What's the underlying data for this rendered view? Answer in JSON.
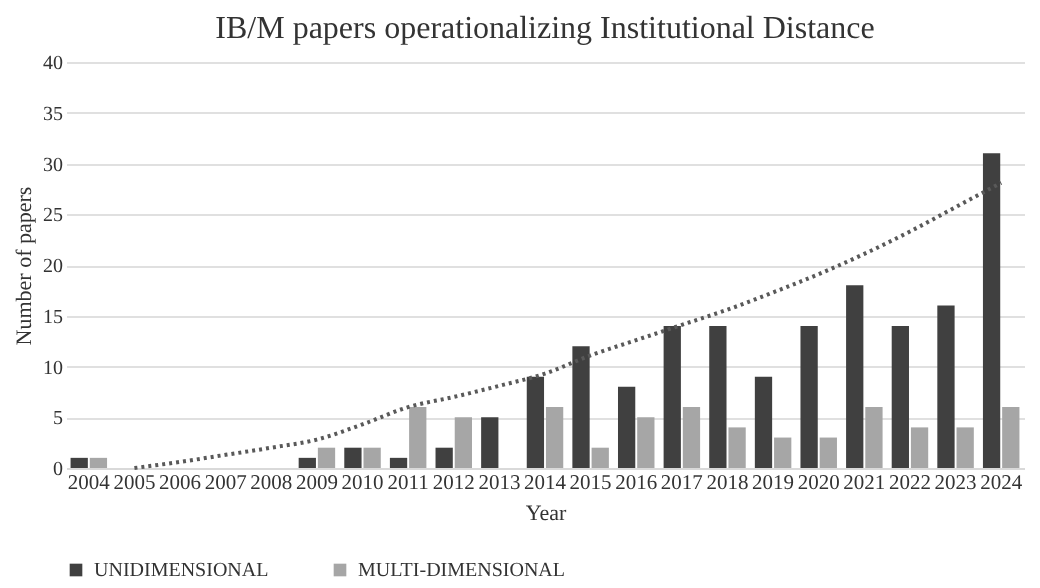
{
  "chart_data": {
    "type": "bar",
    "title": "IB/M papers operationalizing Institutional Distance",
    "xlabel": "Year",
    "ylabel": "Number of papers",
    "categories": [
      "2004",
      "2005",
      "2006",
      "2007",
      "2008",
      "2009",
      "2010",
      "2011",
      "2012",
      "2013",
      "2014",
      "2015",
      "2016",
      "2017",
      "2018",
      "2019",
      "2020",
      "2021",
      "2022",
      "2023",
      "2024"
    ],
    "series": [
      {
        "name": "UNIDIMENSIONAL",
        "color": "#404040",
        "values": [
          1,
          0,
          0,
          0,
          0,
          1,
          2,
          1,
          2,
          5,
          9,
          12,
          8,
          14,
          14,
          9,
          14,
          18,
          14,
          16,
          31
        ]
      },
      {
        "name": "MULTI-DIMENSIONAL",
        "color": "#a6a6a6",
        "values": [
          1,
          0,
          0,
          0,
          0,
          2,
          2,
          6,
          5,
          0,
          6,
          2,
          5,
          6,
          4,
          3,
          3,
          6,
          4,
          4,
          6
        ]
      },
      {
        "type": "line",
        "color": "#595959",
        "line_style": "dotted",
        "values": [
          null,
          0,
          0.6,
          1.3,
          2,
          2.8,
          4.3,
          6,
          7,
          8.1,
          9.3,
          11.1,
          12.6,
          14.1,
          15.6,
          17.3,
          19.1,
          21.1,
          23.3,
          25.7,
          28.1
        ]
      }
    ],
    "ylim": [
      0,
      40
    ],
    "yticks": [
      0,
      5,
      10,
      15,
      20,
      25,
      30,
      35,
      40
    ],
    "grid": "y",
    "legend": "bottom"
  }
}
